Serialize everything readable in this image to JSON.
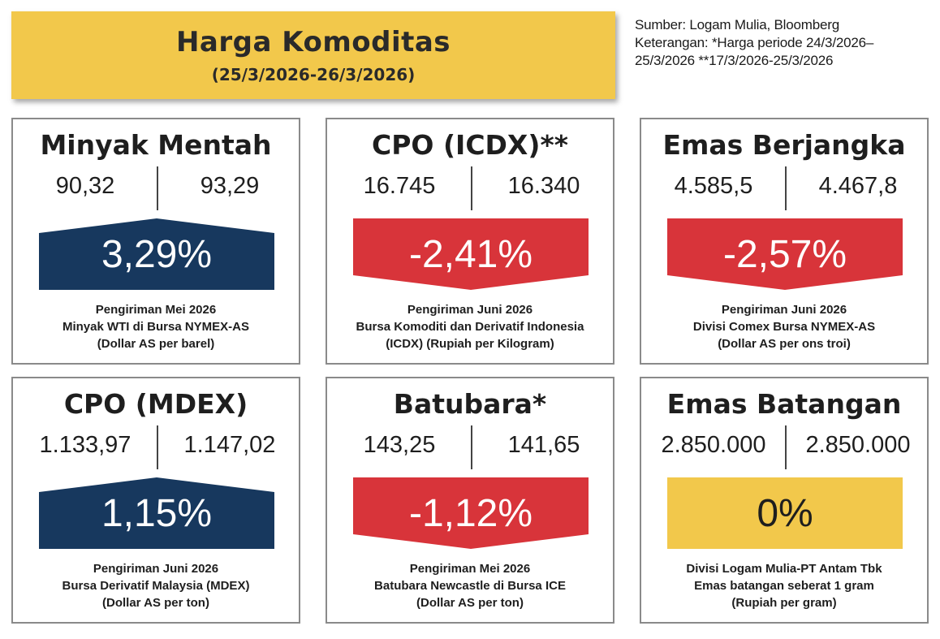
{
  "header": {
    "title": "Harga Komoditas",
    "period": "(25/3/2026-26/3/2026)"
  },
  "note": {
    "line1": "Sumber: Logam Mulia, Bloomberg",
    "line2": "Keterangan: *Harga periode 24/3/2026–",
    "line3": "25/3/2026 **17/3/2026-25/3/2026"
  },
  "colors": {
    "banner": "#f2c84b",
    "up": "#17385e",
    "down": "#d8343a",
    "flat": "#f2c84b"
  },
  "cards": [
    {
      "title": "Minyak Mentah",
      "value_prev": "90,32",
      "value_curr": "93,29",
      "change": "3,29%",
      "direction": "up",
      "desc1": "Pengiriman Mei 2026",
      "desc2": "Minyak WTI di Bursa NYMEX-AS",
      "desc3": "(Dollar AS per barel)"
    },
    {
      "title": "CPO (ICDX)**",
      "value_prev": "16.745",
      "value_curr": "16.340",
      "change": "-2,41%",
      "direction": "down",
      "desc1": "Pengiriman Juni 2026",
      "desc2": "Bursa Komoditi dan Derivatif Indonesia",
      "desc3": "(ICDX) (Rupiah per Kilogram)"
    },
    {
      "title": "Emas Berjangka",
      "value_prev": "4.585,5",
      "value_curr": "4.467,8",
      "change": "-2,57%",
      "direction": "down",
      "desc1": "Pengiriman Juni 2026",
      "desc2": "Divisi Comex Bursa NYMEX-AS",
      "desc3": "(Dollar AS per ons troi)"
    },
    {
      "title": "CPO (MDEX)",
      "value_prev": "1.133,97",
      "value_curr": "1.147,02",
      "change": "1,15%",
      "direction": "up",
      "desc1": "Pengiriman Juni 2026",
      "desc2": "Bursa Derivatif Malaysia (MDEX)",
      "desc3": "(Dollar AS per ton)"
    },
    {
      "title": "Batubara*",
      "value_prev": "143,25",
      "value_curr": "141,65",
      "change": "-1,12%",
      "direction": "down",
      "desc1": "Pengiriman Mei 2026",
      "desc2": "Batubara Newcastle di Bursa ICE",
      "desc3": "(Dollar AS per ton)"
    },
    {
      "title": "Emas Batangan",
      "value_prev": "2.850.000",
      "value_curr": "2.850.000",
      "change": "0%",
      "direction": "flat",
      "desc1": "Divisi Logam Mulia-PT Antam Tbk",
      "desc2": "Emas batangan seberat 1 gram",
      "desc3": "(Rupiah per gram)"
    }
  ]
}
